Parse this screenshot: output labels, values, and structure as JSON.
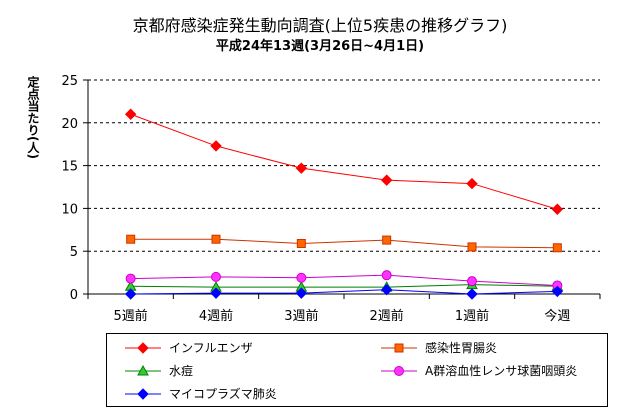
{
  "chart_data": {
    "type": "line",
    "title": "京都府感染症発生動向調査(上位5疾患の推移グラフ)",
    "subtitle": "平成24年13週(3月26日~4月1日)",
    "ylabel": "定点当たり(人)",
    "xlabel": "",
    "categories": [
      "5週前",
      "4週前",
      "3週前",
      "2週前",
      "1週前",
      "今週"
    ],
    "ylim": [
      0,
      25
    ],
    "yticks": [
      0,
      5,
      10,
      15,
      20,
      25
    ],
    "grid": true,
    "legend_position": "bottom",
    "series": [
      {
        "name": "インフルエンザ",
        "values": [
          21.0,
          17.3,
          14.7,
          13.3,
          12.9,
          9.9
        ],
        "color": "#ff0000",
        "marker": "diamond"
      },
      {
        "name": "感染性胃腸炎",
        "values": [
          6.4,
          6.4,
          5.9,
          6.3,
          5.5,
          5.4
        ],
        "color": "#cc3300",
        "marker": "square"
      },
      {
        "name": "水痘",
        "values": [
          0.9,
          0.8,
          0.8,
          0.8,
          1.1,
          0.9
        ],
        "color": "#008000",
        "marker": "triangle"
      },
      {
        "name": "A群溶血性レンサ球菌咽頭炎",
        "values": [
          1.8,
          2.0,
          1.9,
          2.2,
          1.5,
          1.0
        ],
        "color": "#cc00cc",
        "marker": "circle"
      },
      {
        "name": "マイコプラズマ肺炎",
        "values": [
          0.0,
          0.1,
          0.1,
          0.5,
          0.0,
          0.3
        ],
        "color": "#0000ff",
        "marker": "diamond"
      }
    ]
  }
}
